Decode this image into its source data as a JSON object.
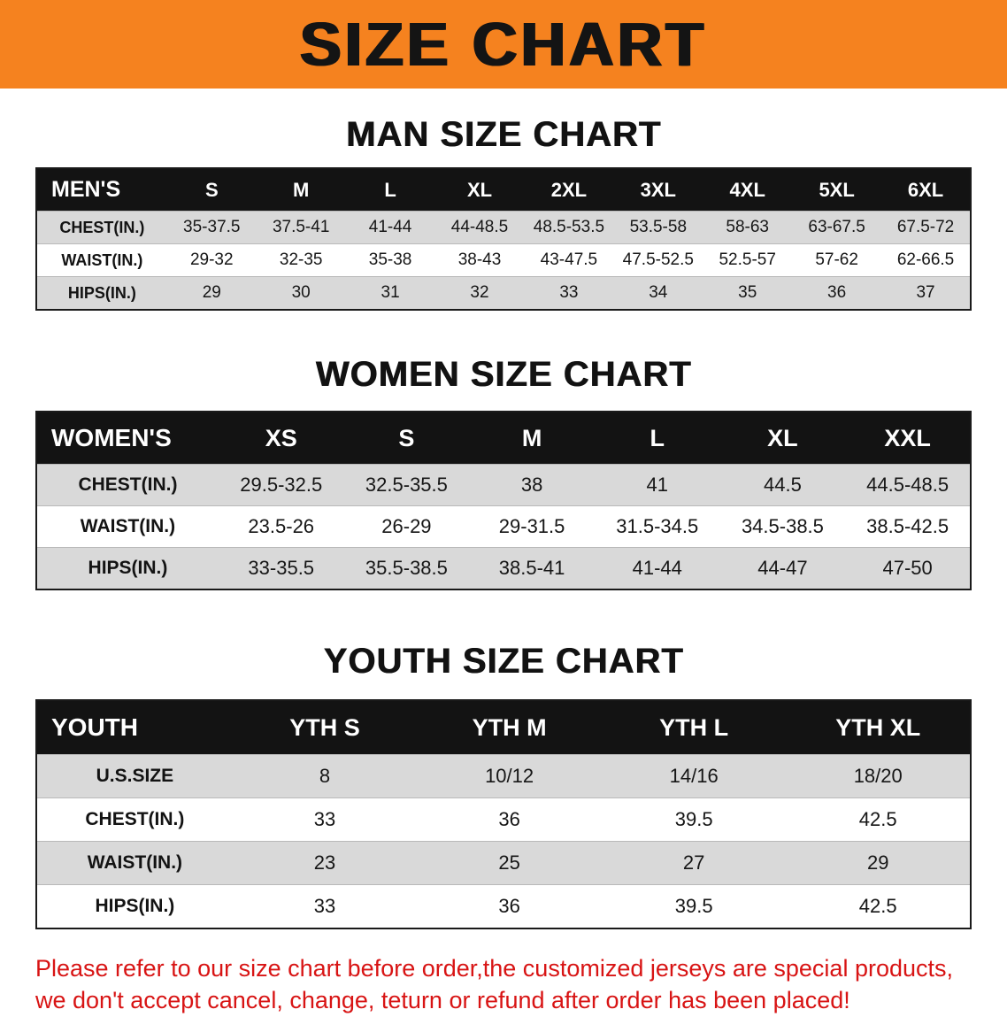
{
  "banner": {
    "title": "SIZE CHART",
    "bg_color": "#f5821f"
  },
  "sections": [
    {
      "id": "man-size-chart",
      "heading": "MAN SIZE CHART",
      "table": {
        "header": [
          "MEN'S",
          "S",
          "M",
          "L",
          "XL",
          "2XL",
          "3XL",
          "4XL",
          "5XL",
          "6XL"
        ],
        "rows": [
          {
            "label": "CHEST(IN.)",
            "values": [
              "35-37.5",
              "37.5-41",
              "41-44",
              "44-48.5",
              "48.5-53.5",
              "53.5-58",
              "58-63",
              "63-67.5",
              "67.5-72"
            ]
          },
          {
            "label": "WAIST(IN.)",
            "values": [
              "29-32",
              "32-35",
              "35-38",
              "38-43",
              "43-47.5",
              "47.5-52.5",
              "52.5-57",
              "57-62",
              "62-66.5"
            ]
          },
          {
            "label": "HIPS(IN.)",
            "values": [
              "29",
              "30",
              "31",
              "32",
              "33",
              "34",
              "35",
              "36",
              "37"
            ]
          }
        ]
      }
    },
    {
      "id": "women-size-chart",
      "heading": "WOMEN SIZE CHART",
      "table": {
        "header": [
          "WOMEN'S",
          "XS",
          "S",
          "M",
          "L",
          "XL",
          "XXL"
        ],
        "rows": [
          {
            "label": "CHEST(IN.)",
            "values": [
              "29.5-32.5",
              "32.5-35.5",
              "38",
              "41",
              "44.5",
              "44.5-48.5"
            ]
          },
          {
            "label": "WAIST(IN.)",
            "values": [
              "23.5-26",
              "26-29",
              "29-31.5",
              "31.5-34.5",
              "34.5-38.5",
              "38.5-42.5"
            ]
          },
          {
            "label": "HIPS(IN.)",
            "values": [
              "33-35.5",
              "35.5-38.5",
              "38.5-41",
              "41-44",
              "44-47",
              "47-50"
            ]
          }
        ]
      }
    },
    {
      "id": "youth-size-chart",
      "heading": "YOUTH SIZE CHART",
      "table": {
        "header": [
          "YOUTH",
          "YTH S",
          "YTH M",
          "YTH L",
          "YTH XL"
        ],
        "rows": [
          {
            "label": "U.S.SIZE",
            "values": [
              "8",
              "10/12",
              "14/16",
              "18/20"
            ]
          },
          {
            "label": "CHEST(IN.)",
            "values": [
              "33",
              "36",
              "39.5",
              "42.5"
            ]
          },
          {
            "label": "WAIST(IN.)",
            "values": [
              "23",
              "25",
              "27",
              "29"
            ]
          },
          {
            "label": "HIPS(IN.)",
            "values": [
              "33",
              "36",
              "39.5",
              "42.5"
            ]
          }
        ]
      }
    }
  ],
  "footer": {
    "line1": "Please refer to our size chart before order,the customized jerseys are special products,",
    "line2": "we don't accept cancel, change, teturn or refund after order has been placed!"
  },
  "colors": {
    "banner_orange": "#f5821f",
    "header_black": "#131313",
    "band_gray": "#d9d9d9",
    "disclaimer_red": "#d81414"
  }
}
